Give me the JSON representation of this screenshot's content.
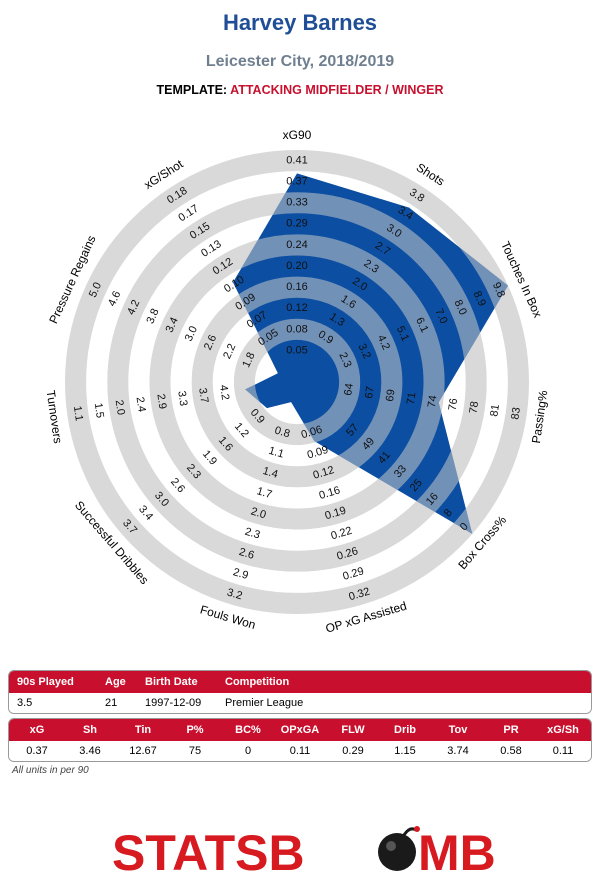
{
  "header": {
    "title": "Harvey Barnes",
    "subtitle": "Leicester City, 2018/2019",
    "template_label": "TEMPLATE:",
    "template_value": "ATTACKING MIDFIELDER / WINGER"
  },
  "colors": {
    "player_fill": "#0b4ea2",
    "ring": "#d9d9d9",
    "accent": "#c8102e",
    "title": "#1f4e96"
  },
  "chart_data": {
    "type": "radar",
    "axes": [
      {
        "name": "xG90",
        "ticks": [
          "0.05",
          "0.08",
          "0.12",
          "0.16",
          "0.20",
          "0.24",
          "0.29",
          "0.33",
          "0.37",
          "0.41"
        ],
        "value": 0.37,
        "min": 0.05,
        "max": 0.41
      },
      {
        "name": "Shots",
        "ticks": [
          "0.9",
          "1.3",
          "1.6",
          "2.0",
          "2.3",
          "2.7",
          "3.0",
          "3.4",
          "3.8"
        ],
        "value": 3.46,
        "min": 0.9,
        "max": 3.8
      },
      {
        "name": "Touches In Box",
        "ticks": [
          "2.3",
          "3.2",
          "4.2",
          "5.1",
          "6.1",
          "7.0",
          "8.0",
          "8.9",
          "9.8"
        ],
        "value": 12.67,
        "min": 2.3,
        "max": 9.8
      },
      {
        "name": "Passing%",
        "ticks": [
          "64",
          "67",
          "69",
          "71",
          "74",
          "76",
          "78",
          "81",
          "83"
        ],
        "value": 75,
        "min": 64,
        "max": 83
      },
      {
        "name": "Box Cross%",
        "ticks": [
          "57",
          "49",
          "41",
          "33",
          "25",
          "16",
          "8",
          "0"
        ],
        "value": 0,
        "min": 57,
        "max": 0
      },
      {
        "name": "OP xG Assisted",
        "ticks": [
          "0.06",
          "0.09",
          "0.12",
          "0.16",
          "0.19",
          "0.22",
          "0.26",
          "0.29",
          "0.32"
        ],
        "value": 0.11,
        "min": 0.06,
        "max": 0.32
      },
      {
        "name": "Fouls Won",
        "ticks": [
          "0.8",
          "1.1",
          "1.4",
          "1.7",
          "2.0",
          "2.3",
          "2.6",
          "2.9",
          "3.2"
        ],
        "value": 0.29,
        "min": 0.8,
        "max": 3.2
      },
      {
        "name": "Successful Dribbles",
        "ticks": [
          "0.9",
          "1.2",
          "1.6",
          "1.9",
          "2.3",
          "2.6",
          "3.0",
          "3.4",
          "3.7"
        ],
        "value": 1.15,
        "min": 0.9,
        "max": 3.7
      },
      {
        "name": "Turnovers",
        "ticks": [
          "4.2",
          "3.7",
          "3.3",
          "2.9",
          "2.4",
          "2.0",
          "1.5",
          "1.1"
        ],
        "value": 3.74,
        "min": 4.2,
        "max": 1.1
      },
      {
        "name": "Pressure Regains",
        "ticks": [
          "1.8",
          "2.2",
          "2.6",
          "3.0",
          "3.4",
          "3.8",
          "4.2",
          "4.6",
          "5.0"
        ],
        "value": 0.58,
        "min": 1.8,
        "max": 5.0
      },
      {
        "name": "xG/Shot",
        "ticks": [
          "0.05",
          "0.07",
          "0.09",
          "0.10",
          "0.12",
          "0.13",
          "0.15",
          "0.17",
          "0.18"
        ],
        "value": 0.11,
        "min": 0.05,
        "max": 0.18
      }
    ]
  },
  "info_table": {
    "headers": [
      "90s Played",
      "Age",
      "Birth Date",
      "Competition"
    ],
    "values": [
      "3.5",
      "21",
      "1997-12-09",
      "Premier League"
    ]
  },
  "stats_table": {
    "headers": [
      "xG",
      "Sh",
      "Tin",
      "P%",
      "BC%",
      "OPxGA",
      "FLW",
      "Drib",
      "Tov",
      "PR",
      "xG/Sh"
    ],
    "values": [
      "0.37",
      "3.46",
      "12.67",
      "75",
      "0",
      "0.11",
      "0.29",
      "1.15",
      "3.74",
      "0.58",
      "0.11"
    ]
  },
  "footnote": "All units in per 90",
  "logo_text": {
    "part1": "STATSB",
    "part2": "MB"
  }
}
